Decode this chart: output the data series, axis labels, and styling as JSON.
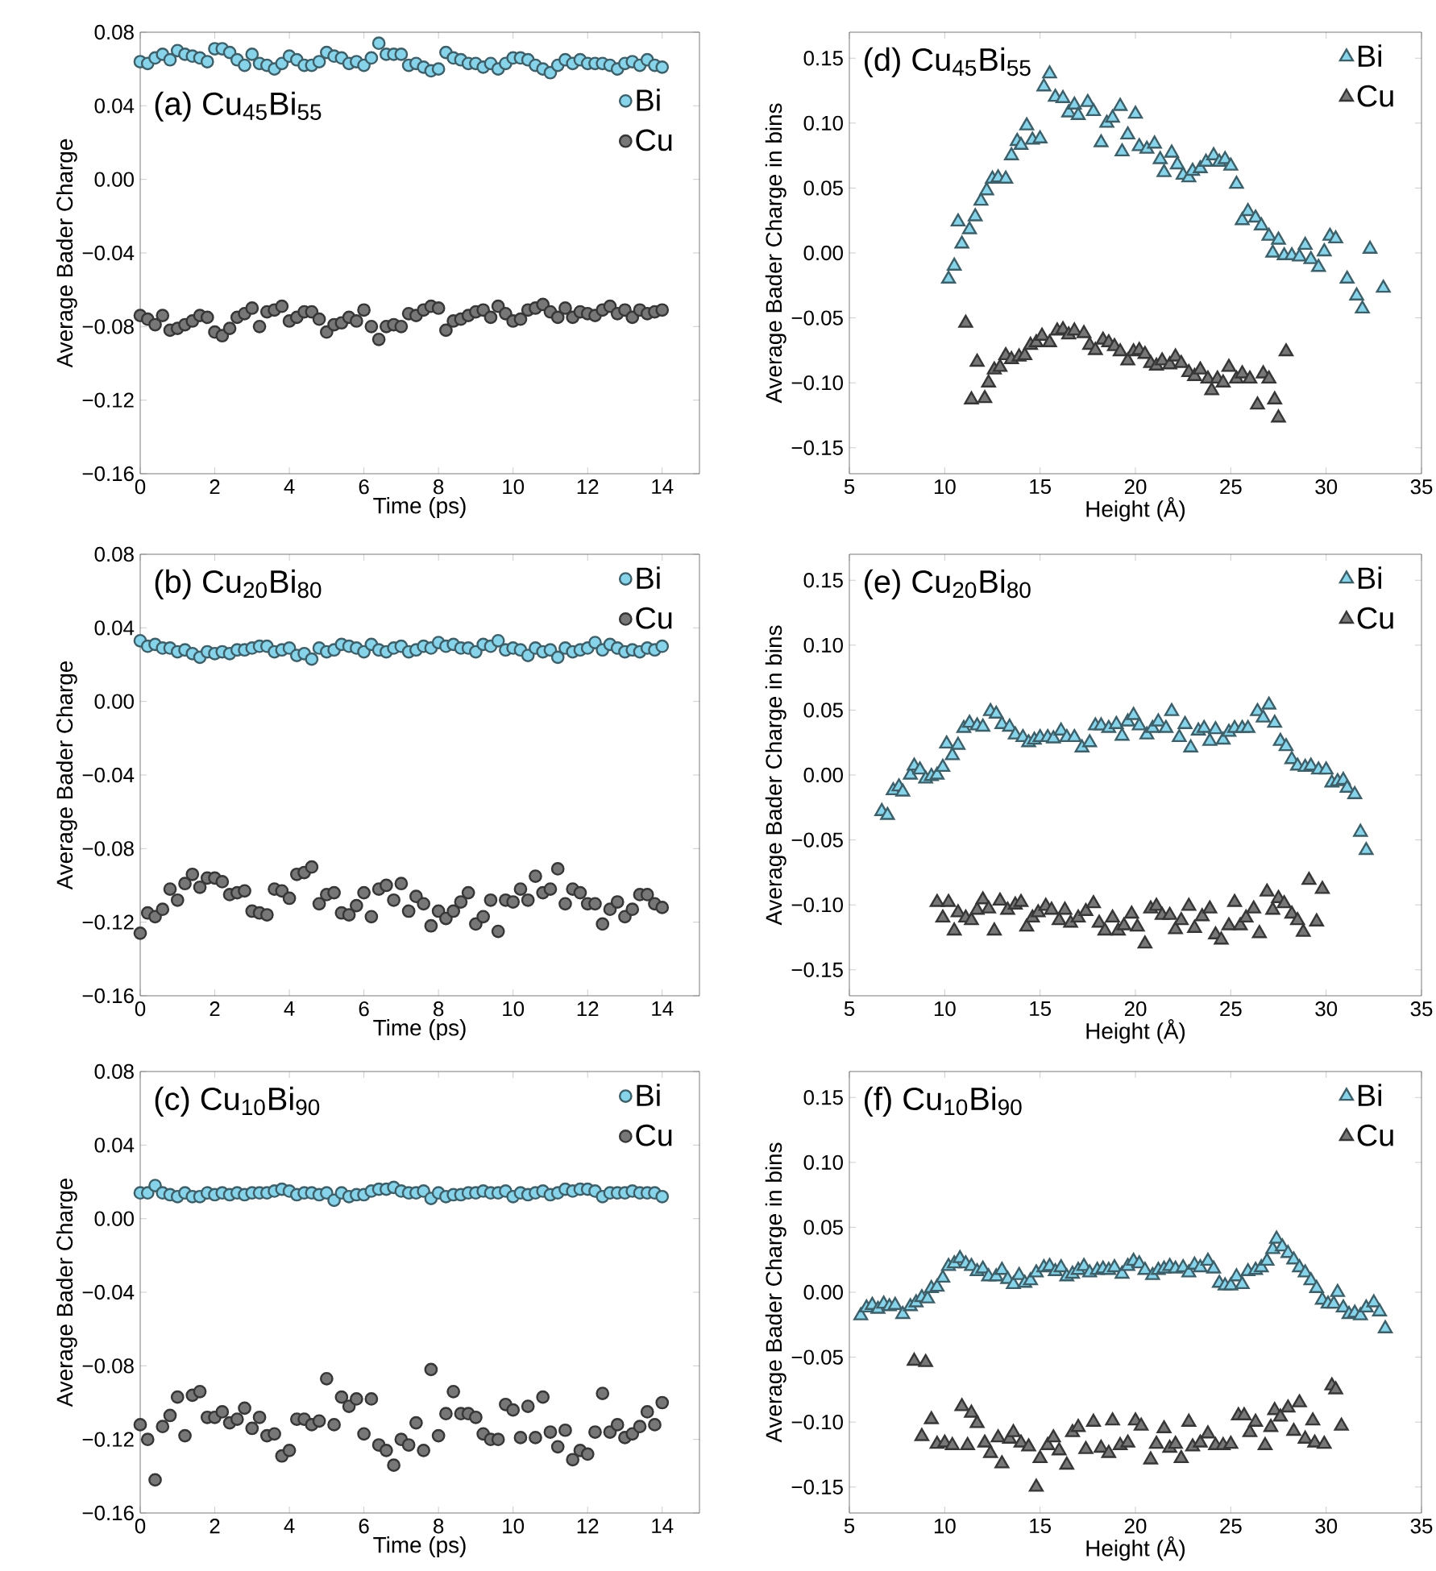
{
  "chart_data": [
    {
      "type": "scatter",
      "title": "(a) Cu$_{45}$Bi$_{55}$",
      "xlabel": "Time (ps)",
      "ylabel": "Average Bader Charge",
      "marker": "circle",
      "legend": "top right",
      "xlim": [
        0,
        15
      ],
      "ylim": [
        -0.16,
        0.08
      ],
      "xticks": [
        0,
        2,
        4,
        6,
        8,
        10,
        12,
        14
      ],
      "yticks": [
        {
          "value": -0.16,
          "label": "−0.16"
        },
        {
          "value": -0.12,
          "label": "−0.12"
        },
        {
          "value": -0.08,
          "label": "−0.08"
        },
        {
          "value": -0.04,
          "label": "−0.04"
        },
        {
          "value": 0,
          "label": "0.00"
        },
        {
          "value": 0.04,
          "label": "0.04"
        },
        {
          "value": 0.08,
          "label": "0.08"
        }
      ],
      "x": [
        0,
        0.2,
        0.4,
        0.6,
        0.8,
        1,
        1.2,
        1.4,
        1.6,
        1.8,
        2,
        2.2,
        2.4,
        2.6,
        2.8,
        3,
        3.2,
        3.4,
        3.6,
        3.8,
        4,
        4.2,
        4.4,
        4.6,
        4.8,
        5,
        5.2,
        5.4,
        5.6,
        5.8,
        6,
        6.2,
        6.4,
        6.6,
        6.8,
        7,
        7.2,
        7.4,
        7.6,
        7.8,
        8,
        8.2,
        8.4,
        8.6,
        8.8,
        9,
        9.2,
        9.4,
        9.6,
        9.8,
        10,
        10.2,
        10.4,
        10.6,
        10.8,
        11,
        11.2,
        11.4,
        11.6,
        11.8,
        12,
        12.2,
        12.4,
        12.6,
        12.8,
        13,
        13.2,
        13.4,
        13.6,
        13.8,
        14
      ],
      "series": [
        {
          "name": "Bi",
          "color": "#87d4ea",
          "values": [
            0.064,
            0.063,
            0.066,
            0.068,
            0.065,
            0.07,
            0.068,
            0.067,
            0.066,
            0.064,
            0.071,
            0.071,
            0.069,
            0.065,
            0.062,
            0.068,
            0.063,
            0.062,
            0.06,
            0.063,
            0.067,
            0.065,
            0.062,
            0.062,
            0.064,
            0.069,
            0.067,
            0.066,
            0.063,
            0.064,
            0.062,
            0.066,
            0.074,
            0.068,
            0.068,
            0.068,
            0.062,
            0.063,
            0.061,
            0.059,
            0.06,
            0.069,
            0.066,
            0.065,
            0.063,
            0.063,
            0.061,
            0.063,
            0.06,
            0.063,
            0.066,
            0.066,
            0.065,
            0.062,
            0.06,
            0.058,
            0.062,
            0.065,
            0.063,
            0.065,
            0.063,
            0.063,
            0.063,
            0.062,
            0.06,
            0.063,
            0.064,
            0.062,
            0.065,
            0.062,
            0.061
          ]
        },
        {
          "name": "Cu",
          "color": "#777777",
          "values": [
            -0.074,
            -0.076,
            -0.079,
            -0.074,
            -0.082,
            -0.081,
            -0.079,
            -0.077,
            -0.074,
            -0.075,
            -0.083,
            -0.085,
            -0.081,
            -0.075,
            -0.073,
            -0.07,
            -0.08,
            -0.072,
            -0.071,
            -0.069,
            -0.077,
            -0.075,
            -0.072,
            -0.072,
            -0.076,
            -0.083,
            -0.079,
            -0.078,
            -0.075,
            -0.077,
            -0.071,
            -0.08,
            -0.087,
            -0.08,
            -0.079,
            -0.08,
            -0.073,
            -0.074,
            -0.071,
            -0.069,
            -0.07,
            -0.082,
            -0.077,
            -0.076,
            -0.074,
            -0.072,
            -0.071,
            -0.075,
            -0.069,
            -0.073,
            -0.077,
            -0.076,
            -0.071,
            -0.07,
            -0.068,
            -0.072,
            -0.075,
            -0.07,
            -0.075,
            -0.072,
            -0.073,
            -0.074,
            -0.071,
            -0.069,
            -0.073,
            -0.071,
            -0.075,
            -0.071,
            -0.073,
            -0.072,
            -0.071
          ]
        }
      ]
    },
    {
      "type": "scatter",
      "title": "(b) Cu$_{20}$Bi$_{80}$",
      "xlabel": "Time (ps)",
      "ylabel": "Average Bader Charge",
      "marker": "circle",
      "legend": "top right",
      "xlim": [
        0,
        15
      ],
      "ylim": [
        -0.16,
        0.08
      ],
      "xticks": [
        0,
        2,
        4,
        6,
        8,
        10,
        12,
        14
      ],
      "yticks": [
        {
          "value": -0.16,
          "label": "−0.16"
        },
        {
          "value": -0.12,
          "label": "−0.12"
        },
        {
          "value": -0.08,
          "label": "−0.08"
        },
        {
          "value": -0.04,
          "label": "−0.04"
        },
        {
          "value": 0,
          "label": "0.00"
        },
        {
          "value": 0.04,
          "label": "0.04"
        },
        {
          "value": 0.08,
          "label": "0.08"
        }
      ],
      "x": [
        0,
        0.2,
        0.4,
        0.6,
        0.8,
        1,
        1.2,
        1.4,
        1.6,
        1.8,
        2,
        2.2,
        2.4,
        2.6,
        2.8,
        3,
        3.2,
        3.4,
        3.6,
        3.8,
        4,
        4.2,
        4.4,
        4.6,
        4.8,
        5,
        5.2,
        5.4,
        5.6,
        5.8,
        6,
        6.2,
        6.4,
        6.6,
        6.8,
        7,
        7.2,
        7.4,
        7.6,
        7.8,
        8,
        8.2,
        8.4,
        8.6,
        8.8,
        9,
        9.2,
        9.4,
        9.6,
        9.8,
        10,
        10.2,
        10.4,
        10.6,
        10.8,
        11,
        11.2,
        11.4,
        11.6,
        11.8,
        12,
        12.2,
        12.4,
        12.6,
        12.8,
        13,
        13.2,
        13.4,
        13.6,
        13.8,
        14
      ],
      "series": [
        {
          "name": "Bi",
          "color": "#87d4ea",
          "values": [
            0.033,
            0.03,
            0.031,
            0.029,
            0.029,
            0.027,
            0.028,
            0.026,
            0.024,
            0.027,
            0.026,
            0.027,
            0.026,
            0.028,
            0.028,
            0.029,
            0.03,
            0.03,
            0.027,
            0.028,
            0.029,
            0.025,
            0.026,
            0.023,
            0.029,
            0.027,
            0.028,
            0.031,
            0.03,
            0.029,
            0.027,
            0.031,
            0.028,
            0.027,
            0.029,
            0.03,
            0.027,
            0.028,
            0.03,
            0.029,
            0.032,
            0.03,
            0.031,
            0.029,
            0.029,
            0.027,
            0.031,
            0.03,
            0.033,
            0.028,
            0.029,
            0.028,
            0.025,
            0.029,
            0.027,
            0.028,
            0.024,
            0.029,
            0.027,
            0.028,
            0.029,
            0.032,
            0.028,
            0.031,
            0.029,
            0.027,
            0.028,
            0.027,
            0.029,
            0.028,
            0.03
          ]
        },
        {
          "name": "Cu",
          "color": "#777777",
          "values": [
            -0.126,
            -0.115,
            -0.117,
            -0.113,
            -0.102,
            -0.108,
            -0.099,
            -0.094,
            -0.101,
            -0.096,
            -0.096,
            -0.098,
            -0.105,
            -0.104,
            -0.103,
            -0.114,
            -0.115,
            -0.116,
            -0.102,
            -0.103,
            -0.107,
            -0.094,
            -0.093,
            -0.09,
            -0.11,
            -0.105,
            -0.104,
            -0.115,
            -0.116,
            -0.111,
            -0.104,
            -0.117,
            -0.102,
            -0.1,
            -0.108,
            -0.099,
            -0.114,
            -0.106,
            -0.11,
            -0.122,
            -0.114,
            -0.118,
            -0.114,
            -0.109,
            -0.104,
            -0.121,
            -0.117,
            -0.108,
            -0.125,
            -0.108,
            -0.109,
            -0.102,
            -0.108,
            -0.095,
            -0.104,
            -0.102,
            -0.091,
            -0.11,
            -0.102,
            -0.104,
            -0.11,
            -0.11,
            -0.121,
            -0.113,
            -0.109,
            -0.117,
            -0.113,
            -0.105,
            -0.105,
            -0.11,
            -0.112
          ]
        }
      ]
    },
    {
      "type": "scatter",
      "title": "(c) Cu$_{10}$Bi$_{90}$",
      "xlabel": "Time (ps)",
      "ylabel": "Average Bader Charge",
      "marker": "circle",
      "legend": "top right",
      "xlim": [
        0,
        15
      ],
      "ylim": [
        -0.16,
        0.08
      ],
      "xticks": [
        0,
        2,
        4,
        6,
        8,
        10,
        12,
        14
      ],
      "yticks": [
        {
          "value": -0.16,
          "label": "−0.16"
        },
        {
          "value": -0.12,
          "label": "−0.12"
        },
        {
          "value": -0.08,
          "label": "−0.08"
        },
        {
          "value": -0.04,
          "label": "−0.04"
        },
        {
          "value": 0,
          "label": "0.00"
        },
        {
          "value": 0.04,
          "label": "0.04"
        },
        {
          "value": 0.08,
          "label": "0.08"
        }
      ],
      "x": [
        0,
        0.2,
        0.4,
        0.6,
        0.8,
        1,
        1.2,
        1.4,
        1.6,
        1.8,
        2,
        2.2,
        2.4,
        2.6,
        2.8,
        3,
        3.2,
        3.4,
        3.6,
        3.8,
        4,
        4.2,
        4.4,
        4.6,
        4.8,
        5,
        5.2,
        5.4,
        5.6,
        5.8,
        6,
        6.2,
        6.4,
        6.6,
        6.8,
        7,
        7.2,
        7.4,
        7.6,
        7.8,
        8,
        8.2,
        8.4,
        8.6,
        8.8,
        9,
        9.2,
        9.4,
        9.6,
        9.8,
        10,
        10.2,
        10.4,
        10.6,
        10.8,
        11,
        11.2,
        11.4,
        11.6,
        11.8,
        12,
        12.2,
        12.4,
        12.6,
        12.8,
        13,
        13.2,
        13.4,
        13.6,
        13.8,
        14
      ],
      "series": [
        {
          "name": "Bi",
          "color": "#87d4ea",
          "values": [
            0.014,
            0.014,
            0.018,
            0.014,
            0.013,
            0.012,
            0.014,
            0.012,
            0.012,
            0.014,
            0.013,
            0.014,
            0.013,
            0.014,
            0.013,
            0.014,
            0.014,
            0.014,
            0.015,
            0.016,
            0.015,
            0.013,
            0.014,
            0.014,
            0.013,
            0.014,
            0.01,
            0.014,
            0.012,
            0.013,
            0.013,
            0.015,
            0.016,
            0.016,
            0.017,
            0.015,
            0.014,
            0.014,
            0.015,
            0.011,
            0.014,
            0.012,
            0.013,
            0.013,
            0.014,
            0.014,
            0.015,
            0.014,
            0.014,
            0.015,
            0.012,
            0.014,
            0.013,
            0.014,
            0.015,
            0.013,
            0.014,
            0.016,
            0.015,
            0.016,
            0.016,
            0.015,
            0.012,
            0.014,
            0.014,
            0.014,
            0.015,
            0.014,
            0.014,
            0.014,
            0.012
          ]
        },
        {
          "name": "Cu",
          "color": "#777777",
          "values": [
            -0.112,
            -0.12,
            -0.142,
            -0.113,
            -0.107,
            -0.097,
            -0.118,
            -0.096,
            -0.094,
            -0.108,
            -0.108,
            -0.105,
            -0.111,
            -0.109,
            -0.103,
            -0.114,
            -0.108,
            -0.118,
            -0.117,
            -0.129,
            -0.126,
            -0.109,
            -0.109,
            -0.112,
            -0.11,
            -0.087,
            -0.112,
            -0.097,
            -0.102,
            -0.098,
            -0.117,
            -0.098,
            -0.123,
            -0.126,
            -0.134,
            -0.12,
            -0.123,
            -0.111,
            -0.126,
            -0.082,
            -0.118,
            -0.106,
            -0.094,
            -0.106,
            -0.106,
            -0.108,
            -0.117,
            -0.12,
            -0.12,
            -0.101,
            -0.104,
            -0.119,
            -0.102,
            -0.119,
            -0.097,
            -0.116,
            -0.124,
            -0.115,
            -0.131,
            -0.126,
            -0.128,
            -0.116,
            -0.095,
            -0.116,
            -0.112,
            -0.119,
            -0.117,
            -0.113,
            -0.105,
            -0.112,
            -0.1
          ]
        }
      ]
    },
    {
      "type": "scatter",
      "title": "(d) Cu$_{45}$Bi$_{55}$",
      "xlabel": "Height (Å)",
      "ylabel": "Average Bader Charge in bins",
      "marker": "triangle",
      "legend": "top right",
      "xlim": [
        5,
        35
      ],
      "ylim": [
        -0.17,
        0.17
      ],
      "xticks": [
        5,
        10,
        15,
        20,
        25,
        30,
        35
      ],
      "yticks": [
        {
          "value": -0.15,
          "label": "−0.15"
        },
        {
          "value": -0.1,
          "label": "−0.10"
        },
        {
          "value": -0.05,
          "label": "−0.05"
        },
        {
          "value": 0,
          "label": "0.00"
        },
        {
          "value": 0.05,
          "label": "0.05"
        },
        {
          "value": 0.1,
          "label": "0.10"
        },
        {
          "value": 0.15,
          "label": "0.15"
        }
      ],
      "series": [
        {
          "name": "Bi",
          "color": "#87d4ea",
          "x": [
            10.2,
            10.5,
            10.7,
            10.9,
            11.3,
            11.6,
            11.9,
            12.2,
            12.5,
            12.8,
            13.2,
            13.5,
            13.8,
            14.0,
            14.3,
            14.6,
            15.0,
            15.2,
            15.5,
            15.8,
            16.2,
            16.5,
            16.8,
            17.0,
            17.5,
            17.8,
            18.2,
            18.5,
            18.8,
            19.2,
            19.3,
            19.6,
            20.0,
            20.2,
            20.6,
            21.0,
            21.3,
            21.5,
            21.9,
            22.2,
            22.5,
            22.8,
            23.0,
            23.4,
            23.7,
            24.1,
            24.4,
            24.7,
            25.0,
            25.3,
            25.6,
            25.9,
            26.3,
            26.6,
            27.0,
            27.2,
            27.5,
            27.8,
            28.2,
            28.6,
            28.9,
            29.2,
            29.6,
            29.9,
            30.2,
            30.5,
            31.1,
            31.6,
            31.9,
            32.3,
            33.0
          ],
          "values": [
            -0.02,
            -0.01,
            0.024,
            0.007,
            0.018,
            0.028,
            0.04,
            0.048,
            0.057,
            0.058,
            0.057,
            0.075,
            0.086,
            0.083,
            0.098,
            0.087,
            0.088,
            0.128,
            0.138,
            0.12,
            0.119,
            0.108,
            0.114,
            0.106,
            0.116,
            0.109,
            0.085,
            0.1,
            0.104,
            0.113,
            0.078,
            0.091,
            0.107,
            0.082,
            0.08,
            0.084,
            0.072,
            0.062,
            0.077,
            0.068,
            0.06,
            0.058,
            0.063,
            0.065,
            0.07,
            0.075,
            0.07,
            0.072,
            0.067,
            0.053,
            0.025,
            0.032,
            0.027,
            0.021,
            0.013,
            0.0,
            0.01,
            -0.002,
            -0.002,
            -0.003,
            0.006,
            -0.005,
            -0.011,
            0.001,
            0.013,
            0.011,
            -0.02,
            -0.033,
            -0.043,
            0.003,
            -0.027
          ]
        },
        {
          "name": "Cu",
          "color": "#777777",
          "x": [
            11.1,
            11.4,
            11.7,
            12.1,
            12.3,
            12.6,
            12.9,
            13.2,
            13.5,
            13.9,
            14.2,
            14.5,
            14.8,
            15.1,
            15.5,
            15.9,
            16.2,
            16.5,
            16.8,
            17.1,
            17.3,
            17.6,
            17.9,
            18.3,
            18.6,
            18.9,
            19.2,
            19.6,
            19.9,
            20.2,
            20.5,
            20.8,
            21.1,
            21.4,
            21.8,
            22.1,
            22.4,
            22.8,
            23.1,
            23.4,
            23.8,
            24.0,
            24.3,
            24.6,
            24.9,
            25.3,
            25.6,
            26.0,
            26.4,
            26.7,
            27.0,
            27.3,
            27.5,
            27.9
          ],
          "values": [
            -0.054,
            -0.113,
            -0.084,
            -0.112,
            -0.1,
            -0.09,
            -0.088,
            -0.079,
            -0.082,
            -0.08,
            -0.079,
            -0.071,
            -0.069,
            -0.064,
            -0.069,
            -0.06,
            -0.059,
            -0.063,
            -0.06,
            null,
            -0.062,
            -0.071,
            -0.075,
            -0.067,
            -0.069,
            -0.072,
            -0.076,
            -0.083,
            -0.076,
            -0.075,
            -0.078,
            -0.085,
            -0.087,
            -0.083,
            -0.086,
            -0.08,
            -0.085,
            -0.092,
            -0.095,
            -0.09,
            -0.097,
            -0.106,
            -0.097,
            -0.1,
            -0.088,
            -0.097,
            -0.093,
            -0.097,
            -0.117,
            -0.093,
            -0.097,
            -0.113,
            -0.127,
            -0.076
          ]
        }
      ]
    },
    {
      "type": "scatter",
      "title": "(e) Cu$_{20}$Bi$_{80}$",
      "xlabel": "Height (Å)",
      "ylabel": "Average Bader Charge in bins",
      "marker": "triangle",
      "legend": "top right",
      "xlim": [
        5,
        35
      ],
      "ylim": [
        -0.17,
        0.17
      ],
      "xticks": [
        5,
        10,
        15,
        20,
        25,
        30,
        35
      ],
      "yticks": [
        {
          "value": -0.15,
          "label": "−0.15"
        },
        {
          "value": -0.1,
          "label": "−0.10"
        },
        {
          "value": -0.05,
          "label": "−0.05"
        },
        {
          "value": 0,
          "label": "0.00"
        },
        {
          "value": 0.05,
          "label": "0.05"
        },
        {
          "value": 0.1,
          "label": "0.10"
        },
        {
          "value": 0.15,
          "label": "0.15"
        }
      ],
      "series": [
        {
          "name": "Bi",
          "color": "#87d4ea",
          "x": [
            6.7,
            7.0,
            7.3,
            7.6,
            7.8,
            8.2,
            8.4,
            8.7,
            9.0,
            9.3,
            9.6,
            9.9,
            10.1,
            10.4,
            10.7,
            11.0,
            11.3,
            11.7,
            12.0,
            12.4,
            12.7,
            13.0,
            13.4,
            13.7,
            14.1,
            14.4,
            14.7,
            15.0,
            15.4,
            15.7,
            16.1,
            16.4,
            16.8,
            17.2,
            17.6,
            17.9,
            18.2,
            18.6,
            19.0,
            19.3,
            19.6,
            19.9,
            20.2,
            20.6,
            20.9,
            21.2,
            21.6,
            21.9,
            22.3,
            22.6,
            22.9,
            23.3,
            23.6,
            23.9,
            24.2,
            24.6,
            24.9,
            25.2,
            25.6,
            25.9,
            26.4,
            26.7,
            27.0,
            27.3,
            27.6,
            27.9,
            28.2,
            28.5,
            28.9,
            29.2,
            29.6,
            30.0,
            30.3,
            30.6,
            30.9,
            31.1,
            31.5,
            31.8,
            32.1
          ],
          "values": [
            -0.028,
            -0.031,
            -0.012,
            -0.009,
            -0.013,
            0.0,
            0.007,
            0.004,
            -0.003,
            -0.001,
            0.0,
            0.006,
            0.024,
            0.015,
            0.023,
            0.036,
            0.04,
            0.038,
            0.037,
            0.049,
            0.047,
            0.039,
            0.037,
            0.031,
            0.029,
            0.025,
            0.027,
            0.029,
            0.029,
            0.028,
            0.034,
            0.029,
            0.029,
            0.021,
            0.025,
            0.038,
            0.038,
            0.036,
            0.039,
            0.03,
            0.041,
            0.046,
            0.038,
            0.031,
            0.036,
            0.041,
            0.036,
            0.049,
            0.029,
            0.039,
            0.021,
            0.034,
            0.036,
            0.026,
            0.035,
            0.027,
            0.033,
            0.036,
            0.036,
            0.036,
            0.049,
            0.044,
            0.054,
            0.04,
            0.026,
            0.022,
            0.012,
            0.007,
            0.006,
            0.007,
            0.004,
            0.004,
            -0.006,
            -0.005,
            -0.004,
            -0.01,
            -0.015,
            -0.044,
            -0.058
          ]
        },
        {
          "name": "Cu",
          "color": "#777777",
          "x": [
            9.6,
            9.9,
            10.2,
            10.5,
            10.7,
            11.1,
            11.4,
            11.7,
            12.0,
            12.3,
            12.6,
            12.9,
            13.3,
            13.7,
            14.0,
            14.3,
            14.6,
            14.9,
            15.3,
            15.6,
            16.0,
            16.3,
            16.6,
            17.0,
            17.4,
            17.8,
            18.1,
            18.4,
            18.8,
            19.1,
            19.4,
            19.8,
            20.1,
            20.5,
            20.8,
            21.1,
            21.4,
            21.8,
            22.1,
            22.4,
            22.8,
            23.1,
            23.5,
            23.9,
            24.2,
            24.5,
            24.9,
            25.2,
            25.5,
            25.8,
            26.2,
            26.5,
            26.9,
            27.2,
            27.5,
            27.8,
            28.2,
            28.5,
            28.8,
            29.1,
            29.5,
            29.8
          ],
          "values": [
            -0.098,
            -0.11,
            -0.098,
            -0.12,
            -0.106,
            -0.11,
            -0.112,
            -0.104,
            -0.096,
            -0.103,
            -0.12,
            -0.097,
            -0.104,
            -0.1,
            -0.098,
            -0.117,
            -0.11,
            -0.106,
            -0.101,
            -0.104,
            -0.112,
            -0.104,
            -0.114,
            -0.11,
            -0.105,
            -0.099,
            -0.114,
            -0.12,
            -0.11,
            -0.12,
            -0.116,
            -0.107,
            -0.117,
            -0.13,
            -0.103,
            -0.101,
            -0.108,
            -0.108,
            -0.119,
            -0.112,
            -0.101,
            -0.118,
            -0.109,
            -0.103,
            -0.123,
            -0.127,
            -0.116,
            -0.098,
            -0.116,
            -0.11,
            -0.103,
            -0.122,
            -0.09,
            -0.104,
            -0.095,
            -0.099,
            -0.107,
            -0.112,
            -0.121,
            -0.081,
            -0.113,
            -0.088
          ]
        }
      ]
    },
    {
      "type": "scatter",
      "title": "(f) Cu$_{10}$Bi$_{90}$",
      "xlabel": "Height (Å)",
      "ylabel": "Average Bader Charge in bins",
      "marker": "triangle",
      "legend": "top right",
      "xlim": [
        5,
        35
      ],
      "ylim": [
        -0.17,
        0.17
      ],
      "xticks": [
        5,
        10,
        15,
        20,
        25,
        30,
        35
      ],
      "yticks": [
        {
          "value": -0.15,
          "label": "−0.15"
        },
        {
          "value": -0.1,
          "label": "−0.10"
        },
        {
          "value": -0.05,
          "label": "−0.05"
        },
        {
          "value": 0,
          "label": "0.00"
        },
        {
          "value": 0.05,
          "label": "0.05"
        },
        {
          "value": 0.1,
          "label": "0.10"
        },
        {
          "value": 0.15,
          "label": "0.15"
        }
      ],
      "series": [
        {
          "name": "Bi",
          "color": "#87d4ea",
          "x": [
            5.6,
            5.9,
            6.2,
            6.5,
            6.8,
            7.1,
            7.4,
            7.8,
            8.2,
            8.5,
            8.8,
            9.1,
            9.3,
            9.6,
            9.9,
            10.2,
            10.5,
            10.8,
            11.1,
            11.4,
            11.7,
            12.0,
            12.3,
            12.7,
            13.0,
            13.3,
            13.6,
            13.9,
            14.2,
            14.5,
            14.8,
            15.2,
            15.5,
            15.8,
            16.1,
            16.4,
            16.7,
            17.0,
            17.3,
            17.6,
            18.0,
            18.3,
            18.6,
            18.9,
            19.3,
            19.6,
            19.9,
            20.2,
            20.5,
            20.9,
            21.2,
            21.5,
            21.8,
            22.1,
            22.5,
            22.8,
            23.1,
            23.4,
            23.8,
            24.1,
            24.4,
            24.7,
            25.0,
            25.3,
            25.6,
            25.9,
            26.3,
            26.6,
            26.9,
            27.2,
            27.4,
            27.7,
            28.0,
            28.3,
            28.6,
            28.9,
            29.2,
            29.5,
            29.8,
            30.1,
            30.4,
            30.6,
            30.9,
            31.2,
            31.5,
            31.8,
            32.1,
            32.5,
            32.8,
            33.1
          ],
          "values": [
            -0.018,
            -0.012,
            -0.01,
            -0.013,
            -0.009,
            -0.011,
            -0.01,
            -0.017,
            -0.011,
            -0.008,
            -0.004,
            -0.005,
            0.003,
            0.004,
            0.011,
            0.02,
            0.022,
            0.026,
            0.022,
            0.02,
            0.016,
            0.018,
            0.012,
            0.012,
            0.017,
            0.01,
            0.006,
            0.013,
            0.007,
            0.009,
            0.015,
            0.019,
            0.02,
            0.016,
            0.019,
            0.012,
            0.014,
            0.017,
            0.02,
            0.015,
            0.017,
            0.018,
            0.017,
            0.019,
            0.014,
            0.02,
            0.024,
            0.022,
            0.017,
            0.013,
            0.017,
            0.018,
            0.02,
            0.018,
            0.019,
            0.015,
            0.021,
            0.019,
            0.024,
            0.018,
            0.007,
            0.005,
            0.005,
            0.012,
            0.006,
            0.016,
            0.017,
            0.019,
            0.024,
            0.033,
            0.041,
            0.035,
            0.03,
            0.025,
            0.019,
            0.015,
            0.009,
            0.003,
            -0.006,
            -0.009,
            -0.009,
            0.0,
            -0.012,
            -0.017,
            -0.016,
            -0.018,
            -0.012,
            -0.008,
            -0.015,
            -0.028
          ]
        },
        {
          "name": "Cu",
          "color": "#777777",
          "x": [
            8.4,
            9.0,
            8.8,
            9.3,
            9.6,
            10.0,
            10.4,
            10.9,
            11.4,
            11.2,
            11.7,
            12.1,
            12.4,
            12.8,
            13.0,
            13.4,
            13.6,
            14.0,
            14.4,
            14.8,
            15.0,
            15.4,
            15.7,
            16.0,
            16.4,
            16.7,
            17.0,
            17.4,
            17.8,
            18.2,
            18.6,
            18.8,
            19.2,
            19.6,
            20.0,
            20.3,
            20.8,
            21.1,
            21.5,
            21.8,
            22.1,
            22.4,
            22.8,
            23.0,
            23.4,
            23.8,
            24.2,
            24.6,
            25.0,
            25.4,
            25.7,
            26.0,
            26.3,
            26.8,
            27.1,
            27.3,
            27.6,
            28.0,
            28.3,
            28.6,
            28.9,
            29.3,
            29.4,
            29.9,
            30.3,
            30.5,
            30.8
          ],
          "values": [
            -0.053,
            -0.054,
            -0.111,
            -0.098,
            -0.117,
            -0.116,
            -0.118,
            -0.088,
            -0.093,
            -0.118,
            -0.101,
            -0.116,
            -0.124,
            -0.112,
            -0.132,
            -0.113,
            -0.108,
            -0.116,
            -0.119,
            -0.15,
            -0.128,
            -0.118,
            -0.112,
            -0.122,
            -0.133,
            -0.108,
            -0.104,
            -0.121,
            -0.1,
            -0.12,
            -0.124,
            -0.099,
            -0.118,
            -0.116,
            -0.099,
            -0.103,
            -0.129,
            -0.117,
            -0.105,
            -0.12,
            -0.117,
            -0.128,
            -0.1,
            -0.119,
            -0.116,
            -0.109,
            -0.118,
            -0.118,
            -0.117,
            -0.095,
            -0.095,
            -0.108,
            -0.1,
            -0.118,
            -0.104,
            -0.091,
            -0.096,
            -0.089,
            -0.107,
            -0.085,
            -0.113,
            -0.099,
            -0.116,
            -0.117,
            -0.072,
            -0.075,
            -0.103
          ]
        }
      ]
    }
  ]
}
